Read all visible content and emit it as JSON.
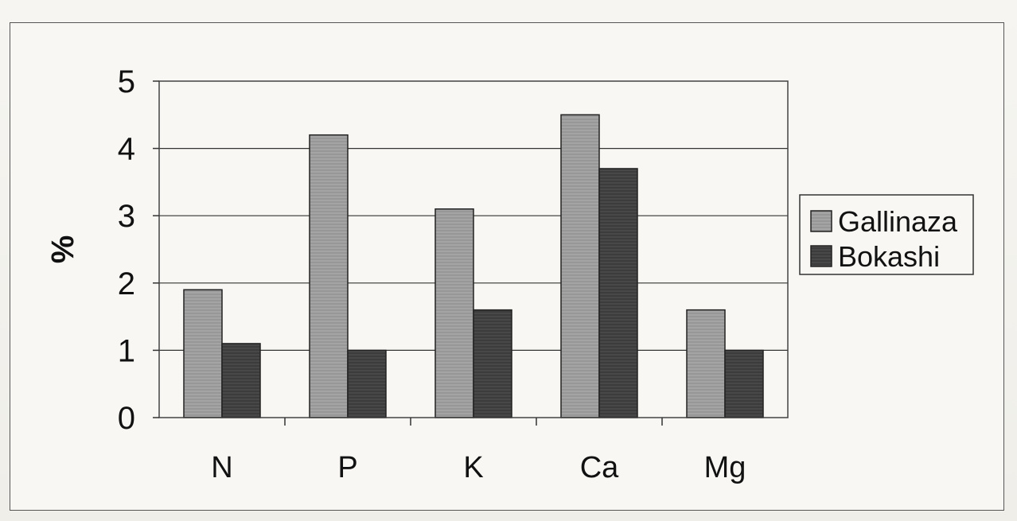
{
  "chart_data": {
    "type": "bar",
    "categories": [
      "N",
      "P",
      "K",
      "Ca",
      "Mg"
    ],
    "series": [
      {
        "name": "Gallinaza",
        "values": [
          1.9,
          4.2,
          3.1,
          4.5,
          1.6
        ],
        "color": "#9a9a9a"
      },
      {
        "name": "Bokashi",
        "values": [
          1.1,
          1.0,
          1.6,
          3.7,
          1.0
        ],
        "color": "#3a3a3a"
      }
    ],
    "title": "",
    "xlabel": "",
    "ylabel": "%",
    "ylim": [
      0,
      5
    ],
    "yticks": [
      "0",
      "1",
      "2",
      "3",
      "4",
      "5"
    ],
    "grid": true,
    "legend": "right"
  }
}
